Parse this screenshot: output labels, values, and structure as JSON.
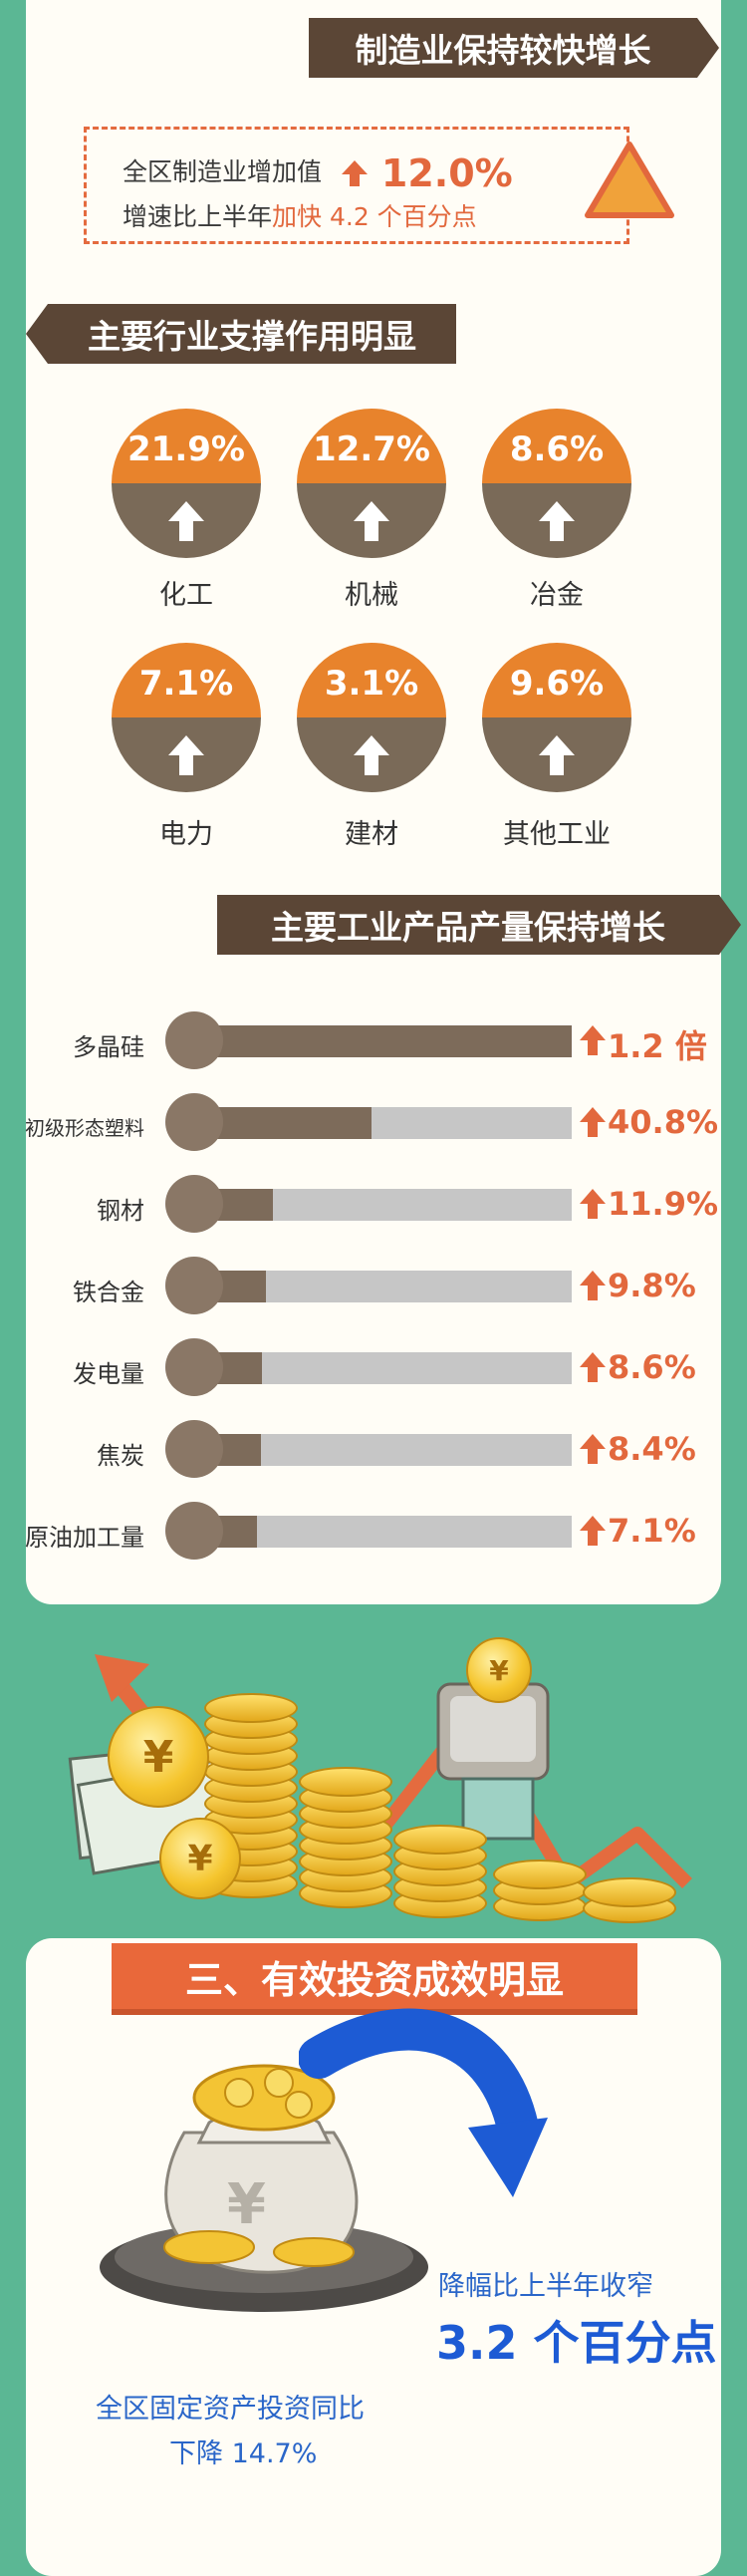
{
  "colors": {
    "background": "#5bb794",
    "orange": "#e2683d",
    "brown": "#5b4636",
    "blue": "#1d5bd4"
  },
  "manufacturing": {
    "banner": "制造业保持较快增长",
    "line1_prefix": "全区制造业增加值",
    "line1_value": "12.0%",
    "line2_prefix": "增速比上半年",
    "line2_accent": "加快 4.2 个百分点",
    "icon": "warning-triangle-icon"
  },
  "industries": {
    "banner": "主要行业支撑作用明显",
    "items": [
      {
        "value": "21.9%",
        "label": "化工"
      },
      {
        "value": "12.7%",
        "label": "机械"
      },
      {
        "value": "8.6%",
        "label": "冶金"
      },
      {
        "value": "7.1%",
        "label": "电力"
      },
      {
        "value": "3.1%",
        "label": "建材"
      },
      {
        "value": "9.6%",
        "label": "其他工业"
      }
    ]
  },
  "products": {
    "banner": "主要工业产品产量保持增长",
    "rows": [
      {
        "name": "多晶硅",
        "value": "1.2 倍",
        "fill": 1.0
      },
      {
        "name": "初级形态塑料",
        "value": "40.8%",
        "fill": 0.408
      },
      {
        "name": "钢材",
        "value": "11.9%",
        "fill": 0.119
      },
      {
        "name": "铁合金",
        "value": "9.8%",
        "fill": 0.098
      },
      {
        "name": "发电量",
        "value": "8.6%",
        "fill": 0.086
      },
      {
        "name": "焦炭",
        "value": "8.4%",
        "fill": 0.084
      },
      {
        "name": "原油加工量",
        "value": "7.1%",
        "fill": 0.071
      }
    ]
  },
  "investment": {
    "banner": "三、有效投资成效明显",
    "decline_note": "降幅比上半年收窄",
    "decline_value": "3.2 个百分点",
    "caption_line1": "全区固定资产投资同比",
    "caption_line2": "下降 14.7%",
    "coin_symbol": "¥",
    "bag_symbol": "¥"
  }
}
